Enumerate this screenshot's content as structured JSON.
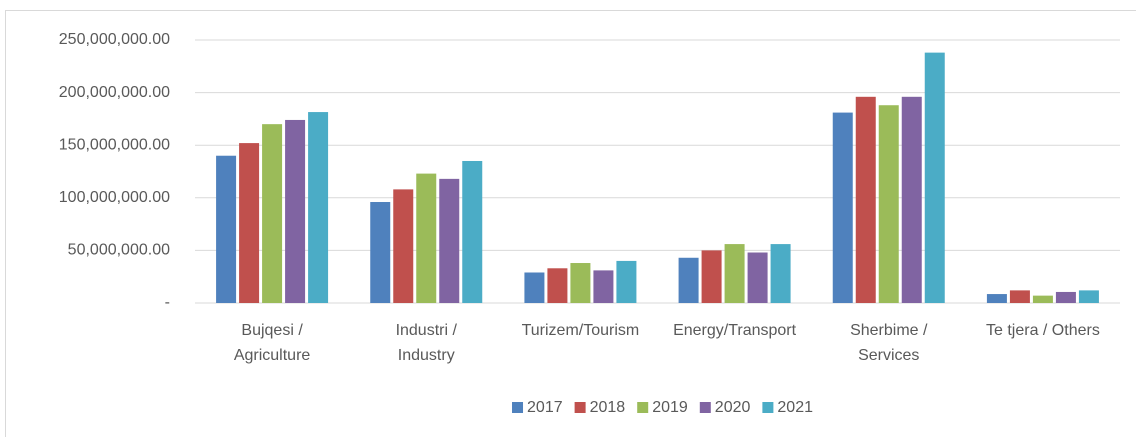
{
  "chart_data": {
    "type": "bar",
    "categories": [
      [
        "Bujqesi /",
        "Agriculture"
      ],
      [
        "Industri /",
        "Industry"
      ],
      [
        "Turizem/Tourism"
      ],
      [
        "Energy/Transport"
      ],
      [
        "Sherbime /",
        "Services"
      ],
      [
        "Te tjera / Others"
      ]
    ],
    "series": [
      {
        "name": "2017",
        "color": "#4f81bd",
        "values": [
          140000000,
          96000000,
          29000000,
          43000000,
          181000000,
          8500000
        ]
      },
      {
        "name": "2018",
        "color": "#c0504d",
        "values": [
          152000000,
          108000000,
          33000000,
          50000000,
          196000000,
          12000000
        ]
      },
      {
        "name": "2019",
        "color": "#9bbb59",
        "values": [
          170000000,
          123000000,
          38000000,
          56000000,
          188000000,
          7000000
        ]
      },
      {
        "name": "2020",
        "color": "#8064a2",
        "values": [
          174000000,
          118000000,
          31000000,
          48000000,
          196000000,
          10500000
        ]
      },
      {
        "name": "2021",
        "color": "#4bacc6",
        "values": [
          181500000,
          135000000,
          40000000,
          56000000,
          238000000,
          12000000
        ]
      }
    ],
    "ylim": [
      0,
      250000000
    ],
    "yticks": [
      {
        "value": 0,
        "label": "-"
      },
      {
        "value": 50000000,
        "label": "50,000,000.00"
      },
      {
        "value": 100000000,
        "label": "100,000,000.00"
      },
      {
        "value": 150000000,
        "label": "150,000,000.00"
      },
      {
        "value": 200000000,
        "label": "200,000,000.00"
      },
      {
        "value": 250000000,
        "label": "250,000,000.00"
      }
    ],
    "grid": true,
    "legend": "bottom"
  }
}
